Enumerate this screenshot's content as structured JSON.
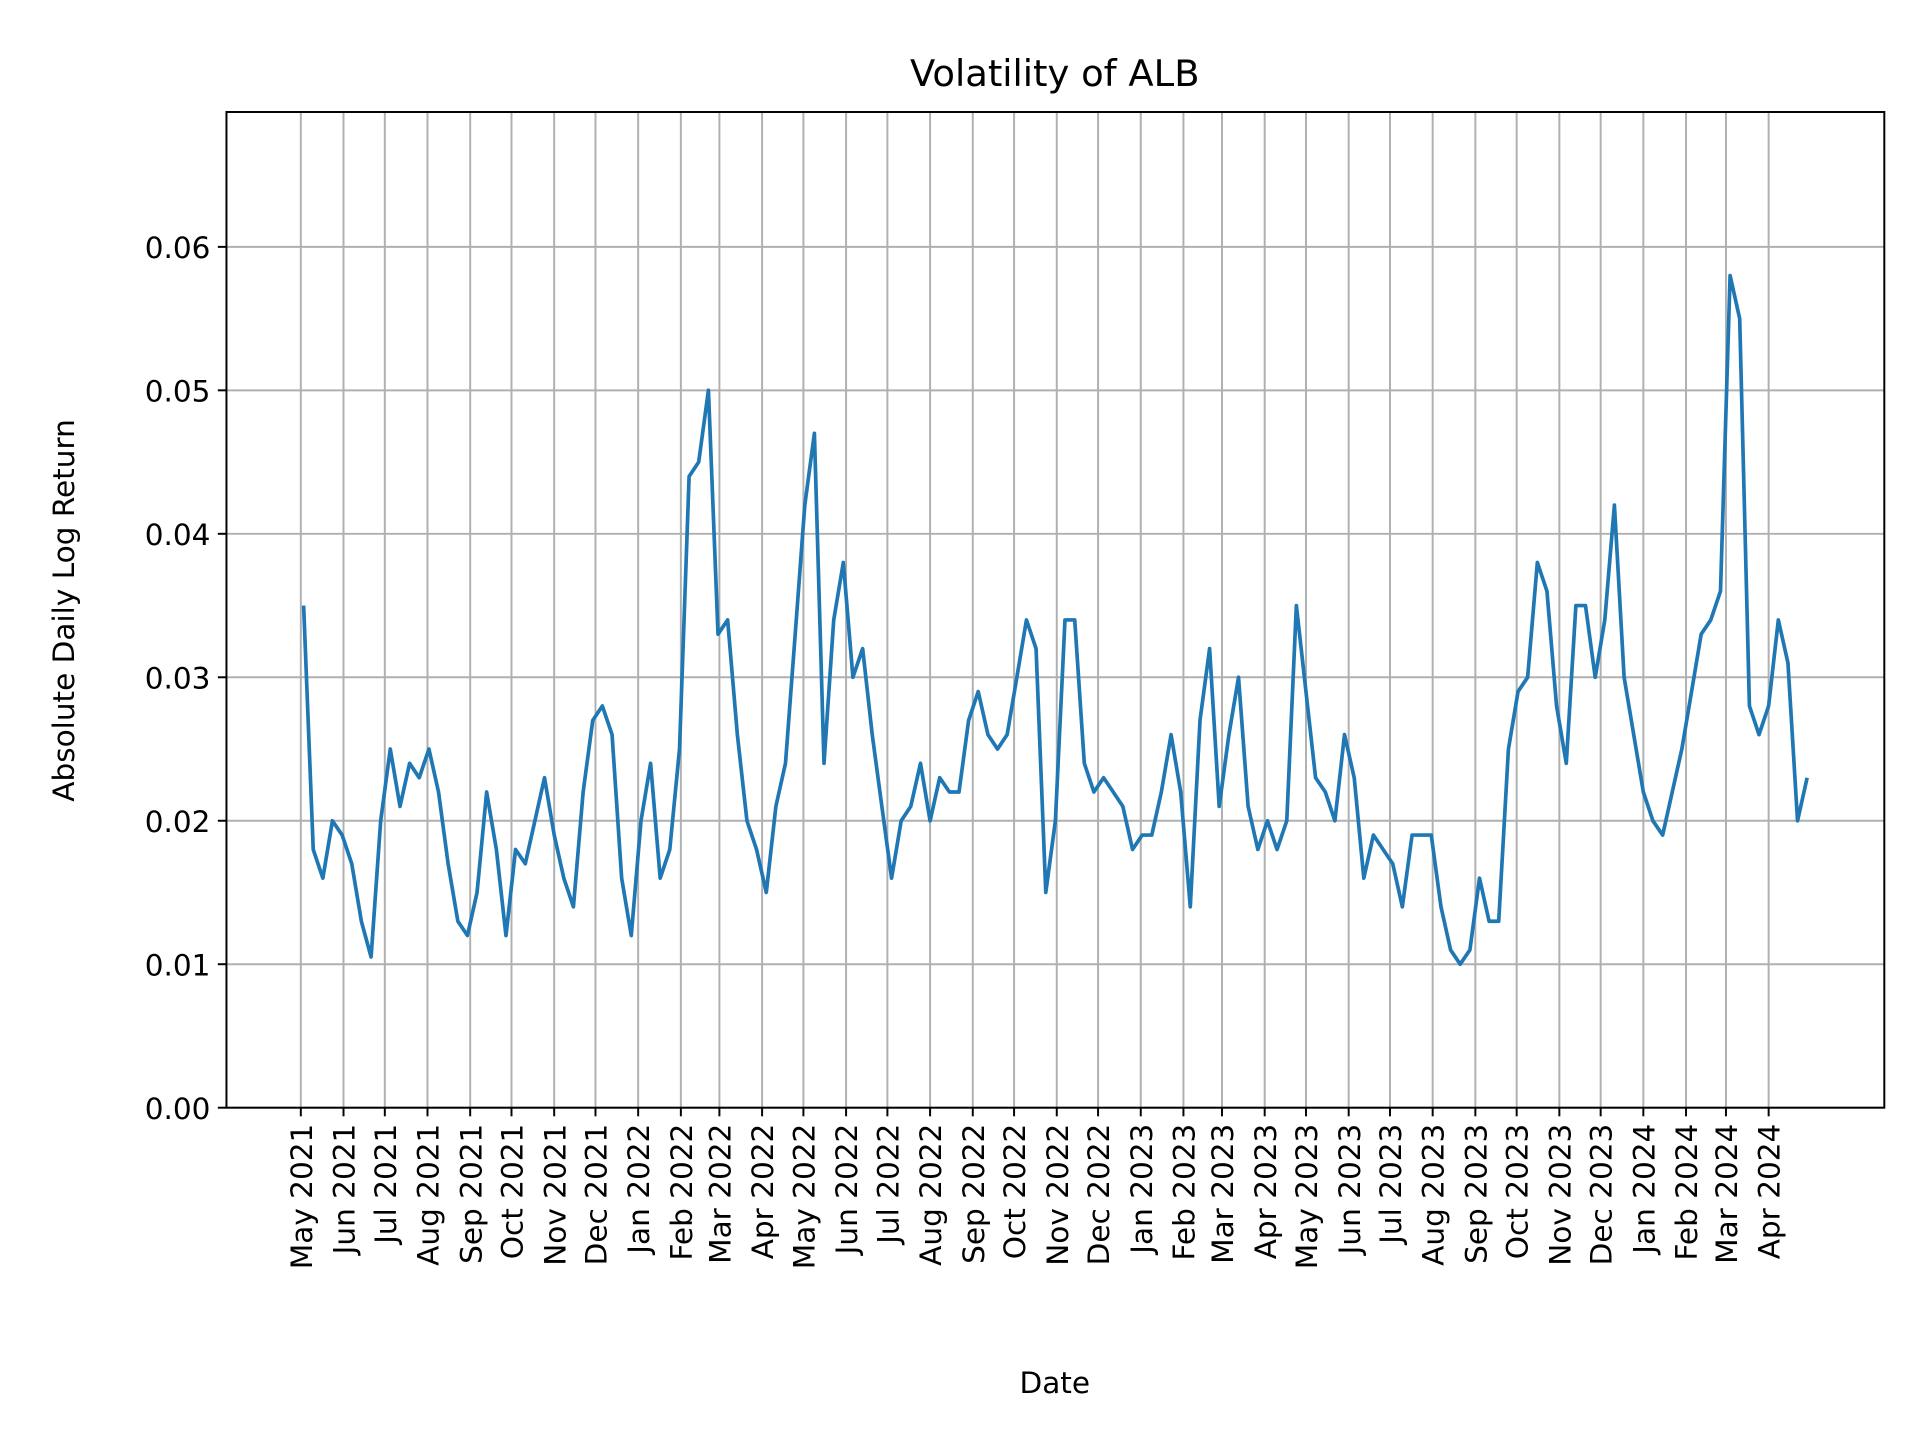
{
  "chart_data": {
    "type": "line",
    "title": "Volatility of ALB",
    "xlabel": "Date",
    "ylabel": "Absolute Daily Log Return",
    "ylim": [
      0,
      0.0694
    ],
    "xlim": [
      "2021-03-08",
      "2024-06-24"
    ],
    "grid": true,
    "line_color": "#1f77b4",
    "y_ticks": [
      "0.00",
      "0.01",
      "0.02",
      "0.03",
      "0.04",
      "0.05",
      "0.06"
    ],
    "x_ticks": [
      {
        "date": "2021-05-01",
        "label": "May 2021"
      },
      {
        "date": "2021-06-01",
        "label": "Jun 2021"
      },
      {
        "date": "2021-07-01",
        "label": "Jul 2021"
      },
      {
        "date": "2021-08-01",
        "label": "Aug 2021"
      },
      {
        "date": "2021-09-01",
        "label": "Sep 2021"
      },
      {
        "date": "2021-10-01",
        "label": "Oct 2021"
      },
      {
        "date": "2021-11-01",
        "label": "Nov 2021"
      },
      {
        "date": "2021-12-01",
        "label": "Dec 2021"
      },
      {
        "date": "2022-01-01",
        "label": "Jan 2022"
      },
      {
        "date": "2022-02-01",
        "label": "Feb 2022"
      },
      {
        "date": "2022-03-01",
        "label": "Mar 2022"
      },
      {
        "date": "2022-04-01",
        "label": "Apr 2022"
      },
      {
        "date": "2022-05-01",
        "label": "May 2022"
      },
      {
        "date": "2022-06-01",
        "label": "Jun 2022"
      },
      {
        "date": "2022-07-01",
        "label": "Jul 2022"
      },
      {
        "date": "2022-08-01",
        "label": "Aug 2022"
      },
      {
        "date": "2022-09-01",
        "label": "Sep 2022"
      },
      {
        "date": "2022-10-01",
        "label": "Oct 2022"
      },
      {
        "date": "2022-11-01",
        "label": "Nov 2022"
      },
      {
        "date": "2022-12-01",
        "label": "Dec 2022"
      },
      {
        "date": "2023-01-01",
        "label": "Jan 2023"
      },
      {
        "date": "2023-02-01",
        "label": "Feb 2023"
      },
      {
        "date": "2023-03-01",
        "label": "Mar 2023"
      },
      {
        "date": "2023-04-01",
        "label": "Apr 2023"
      },
      {
        "date": "2023-05-01",
        "label": "May 2023"
      },
      {
        "date": "2023-06-01",
        "label": "Jun 2023"
      },
      {
        "date": "2023-07-01",
        "label": "Jul 2023"
      },
      {
        "date": "2023-08-01",
        "label": "Aug 2023"
      },
      {
        "date": "2023-09-01",
        "label": "Sep 2023"
      },
      {
        "date": "2023-10-01",
        "label": "Oct 2023"
      },
      {
        "date": "2023-11-01",
        "label": "Nov 2023"
      },
      {
        "date": "2023-12-01",
        "label": "Dec 2023"
      },
      {
        "date": "2024-01-01",
        "label": "Jan 2024"
      },
      {
        "date": "2024-02-01",
        "label": "Feb 2024"
      },
      {
        "date": "2024-03-01",
        "label": "Mar 2024"
      },
      {
        "date": "2024-04-01",
        "label": "Apr 2024"
      }
    ],
    "series": [
      {
        "x": [
          "2021-05-03",
          "2021-05-10",
          "2021-05-17",
          "2021-05-24",
          "2021-05-31",
          "2021-06-07",
          "2021-06-14",
          "2021-06-21",
          "2021-06-28",
          "2021-07-05",
          "2021-07-12",
          "2021-07-19",
          "2021-07-26",
          "2021-08-02",
          "2021-08-09",
          "2021-08-16",
          "2021-08-23",
          "2021-08-30",
          "2021-09-06",
          "2021-09-13",
          "2021-09-20",
          "2021-09-27",
          "2021-10-04",
          "2021-10-11",
          "2021-10-18",
          "2021-10-25",
          "2021-11-01",
          "2021-11-08",
          "2021-11-15",
          "2021-11-22",
          "2021-11-29",
          "2021-12-06",
          "2021-12-13",
          "2021-12-20",
          "2021-12-27",
          "2022-01-03",
          "2022-01-10",
          "2022-01-17",
          "2022-01-24",
          "2022-01-31",
          "2022-02-07",
          "2022-02-14",
          "2022-02-21",
          "2022-02-28",
          "2022-03-07",
          "2022-03-14",
          "2022-03-21",
          "2022-03-28",
          "2022-04-04",
          "2022-04-11",
          "2022-04-18",
          "2022-04-25",
          "2022-05-02",
          "2022-05-09",
          "2022-05-16",
          "2022-05-23",
          "2022-05-30",
          "2022-06-06",
          "2022-06-13",
          "2022-06-20",
          "2022-06-27",
          "2022-07-04",
          "2022-07-11",
          "2022-07-18",
          "2022-07-25",
          "2022-08-01",
          "2022-08-08",
          "2022-08-15",
          "2022-08-22",
          "2022-08-29",
          "2022-09-05",
          "2022-09-12",
          "2022-09-19",
          "2022-09-26",
          "2022-10-03",
          "2022-10-10",
          "2022-10-17",
          "2022-10-24",
          "2022-10-31",
          "2022-11-07",
          "2022-11-14",
          "2022-11-21",
          "2022-11-28",
          "2022-12-05",
          "2022-12-12",
          "2022-12-19",
          "2022-12-26",
          "2023-01-02",
          "2023-01-09",
          "2023-01-16",
          "2023-01-23",
          "2023-01-30",
          "2023-02-06",
          "2023-02-13",
          "2023-02-20",
          "2023-02-27",
          "2023-03-06",
          "2023-03-13",
          "2023-03-20",
          "2023-03-27",
          "2023-04-03",
          "2023-04-10",
          "2023-04-17",
          "2023-04-24",
          "2023-05-01",
          "2023-05-08",
          "2023-05-15",
          "2023-05-22",
          "2023-05-29",
          "2023-06-05",
          "2023-06-12",
          "2023-06-19",
          "2023-06-26",
          "2023-07-03",
          "2023-07-10",
          "2023-07-17",
          "2023-07-24",
          "2023-07-31",
          "2023-08-07",
          "2023-08-14",
          "2023-08-21",
          "2023-08-28",
          "2023-09-04",
          "2023-09-11",
          "2023-09-18",
          "2023-09-25",
          "2023-10-02",
          "2023-10-09",
          "2023-10-16",
          "2023-10-23",
          "2023-10-30",
          "2023-11-06",
          "2023-11-13",
          "2023-11-20",
          "2023-11-27",
          "2023-12-04",
          "2023-12-11",
          "2023-12-18",
          "2023-12-25",
          "2024-01-01",
          "2024-01-08",
          "2024-01-15",
          "2024-01-22",
          "2024-01-29",
          "2024-02-05",
          "2024-02-12",
          "2024-02-19",
          "2024-02-26",
          "2024-03-04",
          "2024-03-11",
          "2024-03-18",
          "2024-03-25",
          "2024-04-01",
          "2024-04-08",
          "2024-04-15",
          "2024-04-22",
          "2024-04-29"
        ],
        "y": [
          0.035,
          0.018,
          0.016,
          0.02,
          0.019,
          0.017,
          0.013,
          0.0105,
          0.02,
          0.025,
          0.021,
          0.024,
          0.023,
          0.025,
          0.022,
          0.017,
          0.013,
          0.012,
          0.015,
          0.022,
          0.018,
          0.012,
          0.018,
          0.017,
          0.02,
          0.023,
          0.019,
          0.016,
          0.014,
          0.022,
          0.027,
          0.028,
          0.026,
          0.016,
          0.012,
          0.02,
          0.024,
          0.016,
          0.018,
          0.025,
          0.044,
          0.045,
          0.05,
          0.033,
          0.034,
          0.026,
          0.02,
          0.018,
          0.015,
          0.021,
          0.024,
          0.033,
          0.042,
          0.047,
          0.024,
          0.034,
          0.038,
          0.03,
          0.032,
          0.026,
          0.021,
          0.016,
          0.02,
          0.021,
          0.024,
          0.02,
          0.023,
          0.022,
          0.022,
          0.027,
          0.029,
          0.026,
          0.025,
          0.026,
          0.03,
          0.034,
          0.032,
          0.015,
          0.02,
          0.034,
          0.034,
          0.024,
          0.022,
          0.023,
          0.022,
          0.021,
          0.018,
          0.019,
          0.019,
          0.022,
          0.026,
          0.022,
          0.014,
          0.027,
          0.032,
          0.021,
          0.026,
          0.03,
          0.021,
          0.018,
          0.02,
          0.018,
          0.02,
          0.035,
          0.029,
          0.023,
          0.022,
          0.02,
          0.026,
          0.023,
          0.016,
          0.019,
          0.018,
          0.017,
          0.014,
          0.019,
          0.019,
          0.019,
          0.014,
          0.011,
          0.01,
          0.011,
          0.016,
          0.013,
          0.013,
          0.025,
          0.029,
          0.03,
          0.038,
          0.036,
          0.028,
          0.024,
          0.035,
          0.035,
          0.03,
          0.034,
          0.042,
          0.03,
          0.026,
          0.022,
          0.02,
          0.019,
          0.022,
          0.025,
          0.029,
          0.033,
          0.034,
          0.036,
          0.058,
          0.055,
          0.028,
          0.026,
          0.028,
          0.034,
          0.031,
          0.02,
          0.023
        ]
      }
    ]
  }
}
